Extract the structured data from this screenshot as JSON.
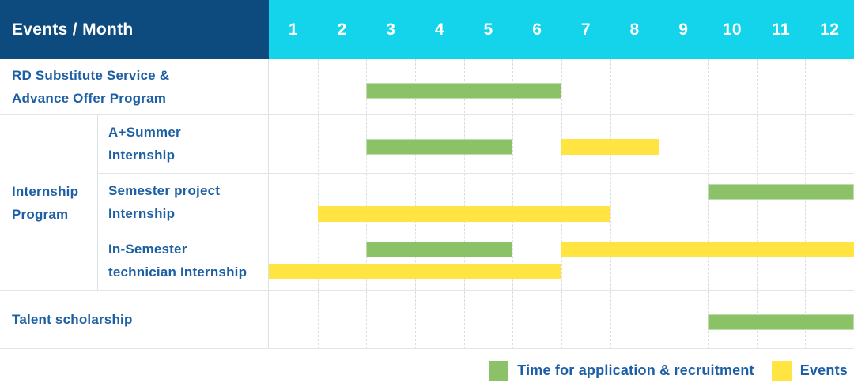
{
  "header": {
    "title": "Events / Month",
    "months": [
      "1",
      "2",
      "3",
      "4",
      "5",
      "6",
      "7",
      "8",
      "9",
      "10",
      "11",
      "12"
    ]
  },
  "colors": {
    "header_bg": "#0d4a7d",
    "months_bg": "#14d4ec",
    "label_text": "#1d5fa4",
    "application_green": "#8bc167",
    "event_yellow": "#ffe442"
  },
  "group_label": "Internship\nProgram",
  "rows": [
    {
      "label": "RD Substitute Service &\nAdvance Offer Program",
      "group": "",
      "bars": [
        {
          "color": "green",
          "start": 3,
          "end": 6,
          "lane": "mid"
        }
      ]
    },
    {
      "label": "A+Summer\nInternship",
      "group": "Internship Program",
      "bars": [
        {
          "color": "green",
          "start": 3,
          "end": 5,
          "lane": "mid"
        },
        {
          "color": "yellow",
          "start": 7,
          "end": 8,
          "lane": "mid"
        }
      ]
    },
    {
      "label": "Semester project\nInternship",
      "group": "Internship Program",
      "bars": [
        {
          "color": "green",
          "start": 10,
          "end": 12,
          "lane": "a"
        },
        {
          "color": "yellow",
          "start": 2,
          "end": 7,
          "lane": "b"
        }
      ]
    },
    {
      "label": "In-Semester\ntechnician Internship",
      "group": "Internship Program",
      "bars": [
        {
          "color": "green",
          "start": 3,
          "end": 5,
          "lane": "a"
        },
        {
          "color": "yellow",
          "start": 7,
          "end": 12,
          "lane": "a"
        },
        {
          "color": "yellow",
          "start": 1,
          "end": 6,
          "lane": "b"
        }
      ]
    },
    {
      "label": "Talent scholarship",
      "group": "",
      "bars": [
        {
          "color": "green",
          "start": 10,
          "end": 12,
          "lane": "mid"
        }
      ]
    }
  ],
  "legend": {
    "items": [
      {
        "label": "Time for application & recruitment",
        "color": "#8bc167",
        "kind": "application"
      },
      {
        "label": "Events",
        "color": "#ffe442",
        "kind": "event"
      }
    ]
  },
  "chart_data": {
    "type": "gantt",
    "title": "Events / Month",
    "x_unit": "month",
    "x_ticks": [
      1,
      2,
      3,
      4,
      5,
      6,
      7,
      8,
      9,
      10,
      11,
      12
    ],
    "x_range": [
      1,
      12
    ],
    "grid": true,
    "legend_position": "bottom-right",
    "legend": [
      {
        "label": "Time for application & recruitment",
        "color": "#8bc167"
      },
      {
        "label": "Events",
        "color": "#ffe442"
      }
    ],
    "tasks": [
      {
        "name": "RD Substitute Service & Advance Offer Program",
        "group": null,
        "bars": [
          {
            "kind": "application",
            "start_month": 3,
            "end_month": 6
          }
        ]
      },
      {
        "name": "A+Summer Internship",
        "group": "Internship Program",
        "bars": [
          {
            "kind": "application",
            "start_month": 3,
            "end_month": 5
          },
          {
            "kind": "event",
            "start_month": 7,
            "end_month": 8
          }
        ]
      },
      {
        "name": "Semester project Internship",
        "group": "Internship Program",
        "bars": [
          {
            "kind": "application",
            "start_month": 10,
            "end_month": 12
          },
          {
            "kind": "event",
            "start_month": 2,
            "end_month": 7
          }
        ]
      },
      {
        "name": "In-Semester technician Internship",
        "group": "Internship Program",
        "bars": [
          {
            "kind": "application",
            "start_month": 3,
            "end_month": 5
          },
          {
            "kind": "event",
            "start_month": 7,
            "end_month": 12
          },
          {
            "kind": "event",
            "start_month": 1,
            "end_month": 6
          }
        ]
      },
      {
        "name": "Talent scholarship",
        "group": null,
        "bars": [
          {
            "kind": "application",
            "start_month": 10,
            "end_month": 12
          }
        ]
      }
    ]
  }
}
